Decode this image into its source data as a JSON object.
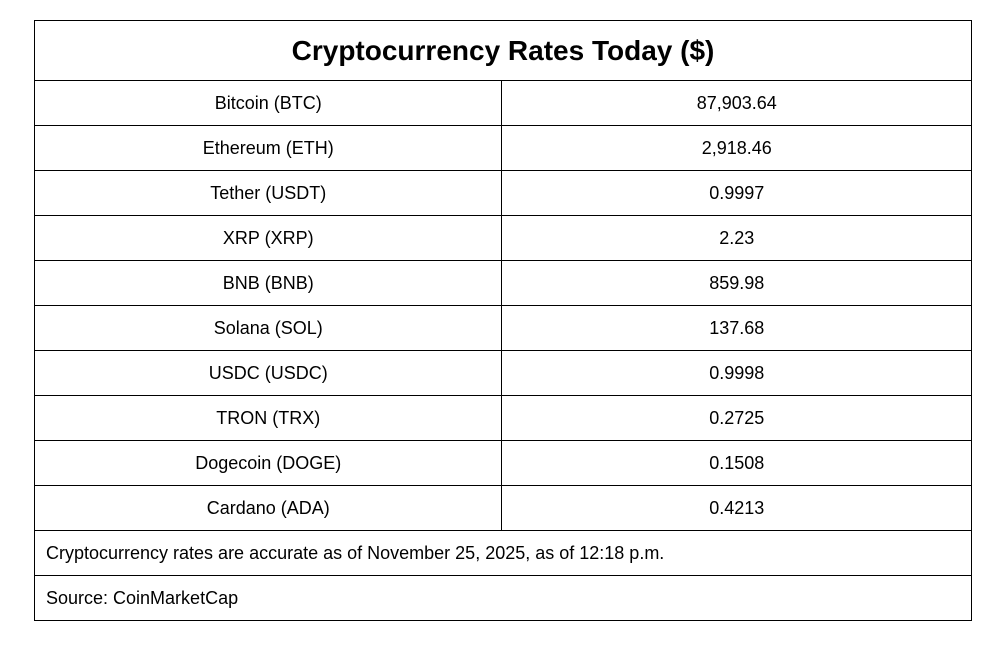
{
  "chart_data": {
    "type": "table",
    "title": "Cryptocurrency Rates Today ($)",
    "rows": [
      {
        "name": "Bitcoin (BTC)",
        "value": "87,903.64"
      },
      {
        "name": "Ethereum (ETH)",
        "value": "2,918.46"
      },
      {
        "name": "Tether (USDT)",
        "value": "0.9997"
      },
      {
        "name": "XRP (XRP)",
        "value": "2.23"
      },
      {
        "name": "BNB (BNB)",
        "value": "859.98"
      },
      {
        "name": "Solana (SOL)",
        "value": "137.68"
      },
      {
        "name": "USDC (USDC)",
        "value": "0.9998"
      },
      {
        "name": "TRON (TRX)",
        "value": "0.2725"
      },
      {
        "name": "Dogecoin (DOGE)",
        "value": "0.1508"
      },
      {
        "name": "Cardano (ADA)",
        "value": "0.4213"
      }
    ],
    "note": "Cryptocurrency rates are accurate as of November 25, 2025, as of 12:18 p.m.",
    "source": "Source: CoinMarketCap"
  }
}
